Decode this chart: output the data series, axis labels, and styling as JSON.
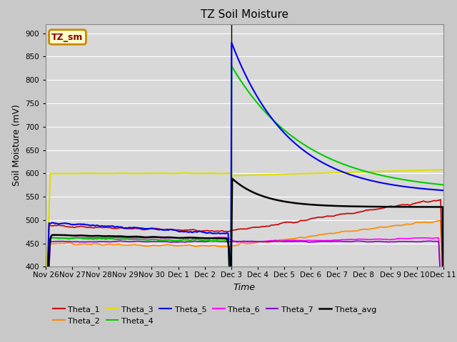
{
  "title": "TZ Soil Moisture",
  "ylabel": "Soil Moisture (mV)",
  "xlabel": "Time",
  "ylim": [
    400,
    920
  ],
  "yticks": [
    400,
    450,
    500,
    550,
    600,
    650,
    700,
    750,
    800,
    850,
    900
  ],
  "label_box_text": "TZ_sm",
  "label_box_bg": "#ffffcc",
  "label_box_border": "#cc8800",
  "label_box_text_color": "#880000",
  "xtick_labels": [
    "Nov 26",
    "Nov 27",
    "Nov 28",
    "Nov 29",
    "Nov 30",
    "Dec 1",
    "Dec 2",
    "Dec 3",
    "Dec 4",
    "Dec 5",
    "Dec 6",
    "Dec 7",
    "Dec 8",
    "Dec 9",
    "Dec 10",
    "Dec 11"
  ],
  "colors": {
    "Theta_1": "#cc0000",
    "Theta_2": "#ff8800",
    "Theta_3": "#dddd00",
    "Theta_4": "#00cc00",
    "Theta_5": "#0000ee",
    "Theta_6": "#ff00ff",
    "Theta_7": "#8800cc",
    "Theta_avg": "#000000"
  },
  "fig_bg": "#c8c8c8",
  "ax_bg": "#d8d8d8",
  "grid_color": "#ffffff",
  "spike_day": 7.0,
  "xlim": [
    0,
    15
  ]
}
